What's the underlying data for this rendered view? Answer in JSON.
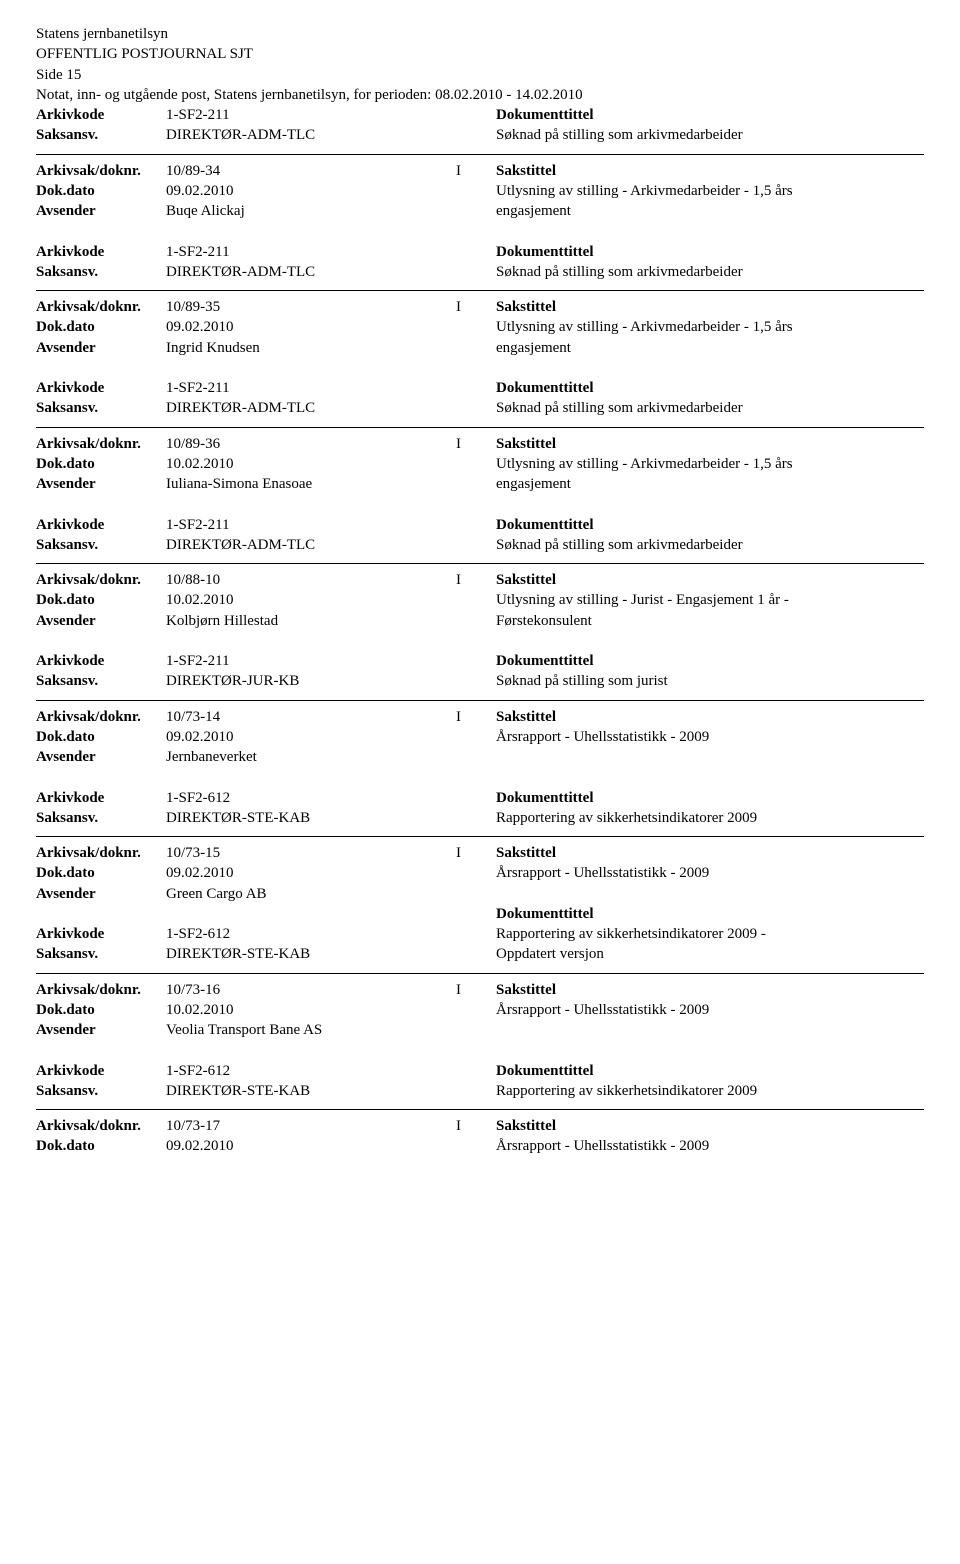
{
  "header": {
    "org": "Statens jernbanetilsyn",
    "title": "OFFENTLIG POSTJOURNAL SJT",
    "page": "Side 15",
    "subtitle": "Notat, inn- og utgående post, Statens jernbanetilsyn, for perioden: 08.02.2010 - 14.02.2010"
  },
  "labels": {
    "arkivsak": "Arkivsak/doknr.",
    "dokdato": "Dok.dato",
    "avsender": "Avsender",
    "arkivkode": "Arkivkode",
    "saksansv": "Saksansv.",
    "sakstittel": "Sakstittel",
    "dokumenttittel": "Dokumenttittel"
  },
  "top_fragment": {
    "arkivkode_value": "1-SF2-211",
    "saksansv_value": "DIREKTØR-ADM-TLC",
    "dokumenttittel_label": "Dokumenttittel",
    "dokumenttittel_value": "Søknad på stilling som arkivmedarbeider"
  },
  "records": [
    {
      "arkivsak": "10/89-34",
      "type": "I",
      "dokdato": "09.02.2010",
      "avsender": "Buqe Alickaj",
      "arkivkode": "1-SF2-211",
      "saksansv": "DIREKTØR-ADM-TLC",
      "sakstittel_lines": [
        "Utlysning av stilling - Arkivmedarbeider - 1,5 års",
        "engasjement"
      ],
      "dokumenttittel": "Søknad på stilling som arkivmedarbeider"
    },
    {
      "arkivsak": "10/89-35",
      "type": "I",
      "dokdato": "09.02.2010",
      "avsender": "Ingrid Knudsen",
      "arkivkode": "1-SF2-211",
      "saksansv": "DIREKTØR-ADM-TLC",
      "sakstittel_lines": [
        "Utlysning av stilling - Arkivmedarbeider - 1,5 års",
        "engasjement"
      ],
      "dokumenttittel": "Søknad på stilling som arkivmedarbeider"
    },
    {
      "arkivsak": "10/89-36",
      "type": "I",
      "dokdato": "10.02.2010",
      "avsender": "Iuliana-Simona Enasoae",
      "arkivkode": "1-SF2-211",
      "saksansv": "DIREKTØR-ADM-TLC",
      "sakstittel_lines": [
        "Utlysning av stilling - Arkivmedarbeider - 1,5 års",
        "engasjement"
      ],
      "dokumenttittel": "Søknad på stilling som arkivmedarbeider"
    },
    {
      "arkivsak": "10/88-10",
      "type": "I",
      "dokdato": "10.02.2010",
      "avsender": "Kolbjørn Hillestad",
      "arkivkode": "1-SF2-211",
      "saksansv": "DIREKTØR-JUR-KB",
      "sakstittel_lines": [
        "Utlysning av stilling - Jurist - Engasjement 1 år -",
        "Førstekonsulent"
      ],
      "dokumenttittel": "Søknad på stilling som jurist"
    },
    {
      "arkivsak": "10/73-14",
      "type": "I",
      "dokdato": "09.02.2010",
      "avsender": "Jernbaneverket",
      "arkivkode": "1-SF2-612",
      "saksansv": "DIREKTØR-STE-KAB",
      "sakstittel_lines": [
        "Årsrapport - Uhellsstatistikk - 2009"
      ],
      "dokumenttittel": "Rapportering av sikkerhetsindikatorer 2009"
    },
    {
      "arkivsak": "10/73-15",
      "type": "I",
      "dokdato": "09.02.2010",
      "avsender": "Green Cargo AB",
      "arkivkode": "1-SF2-612",
      "saksansv": "DIREKTØR-STE-KAB",
      "sakstittel_lines": [
        "Årsrapport - Uhellsstatistikk - 2009"
      ],
      "dokumenttittel_lines": [
        "Rapportering av sikkerhetsindikatorer 2009 -",
        "Oppdatert versjon"
      ]
    },
    {
      "arkivsak": "10/73-16",
      "type": "I",
      "dokdato": "10.02.2010",
      "avsender": "Veolia Transport Bane AS",
      "arkivkode": "1-SF2-612",
      "saksansv": "DIREKTØR-STE-KAB",
      "sakstittel_lines": [
        "Årsrapport - Uhellsstatistikk - 2009"
      ],
      "dokumenttittel": "Rapportering av sikkerhetsindikatorer 2009"
    }
  ],
  "bottom_fragment": {
    "arkivsak": "10/73-17",
    "type": "I",
    "dokdato": "09.02.2010",
    "sakstittel": "Årsrapport - Uhellsstatistikk - 2009"
  }
}
